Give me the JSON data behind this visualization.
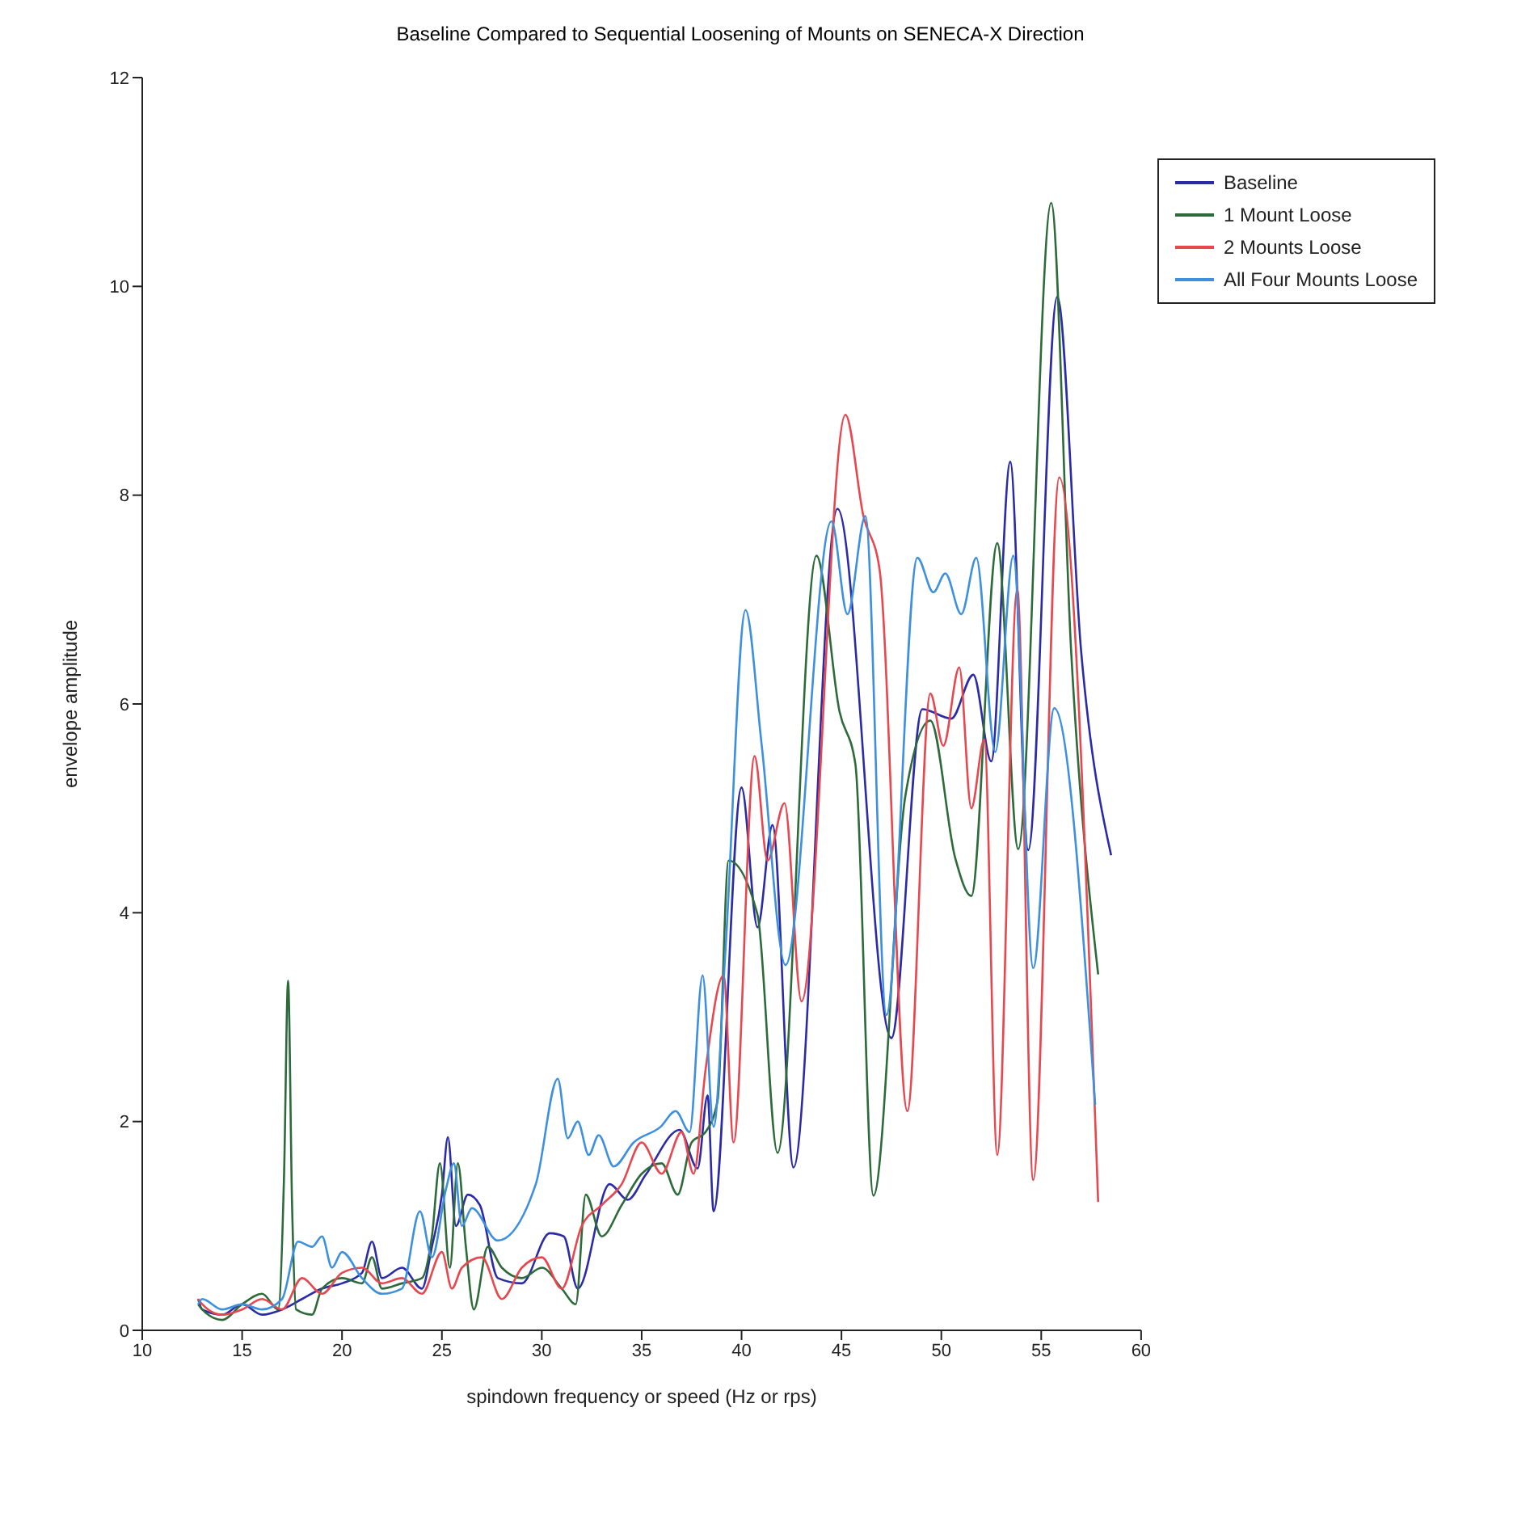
{
  "chart_data": {
    "type": "line",
    "title": "Baseline Compared to Sequential Loosening of Mounts on SENECA-X Direction",
    "xlabel": "spindown frequency or speed (Hz or rps)",
    "ylabel": "envelope amplitude",
    "xlim": [
      10,
      60
    ],
    "xticks": [
      10,
      15,
      20,
      25,
      30,
      35,
      40,
      45,
      50,
      55,
      60
    ],
    "ylim": [
      0,
      12
    ],
    "yticks": [
      0,
      2,
      4,
      6,
      8,
      10,
      12
    ],
    "grid": false,
    "legend": "top right",
    "marker": "none",
    "line_style": "solid",
    "series": [
      {
        "name": "Baseline",
        "color": "#2b2ba8",
        "x": [
          12.8,
          13,
          14,
          15,
          16,
          17,
          18,
          19,
          20,
          21,
          21.5,
          22,
          23,
          24,
          24.5,
          25,
          25.3,
          25.7,
          26.3,
          26.9,
          27.8,
          29,
          30.4,
          31.1,
          31.8,
          33.4,
          34.3,
          35.2,
          36.9,
          37.8,
          38.3,
          38.6,
          40,
          40.8,
          41.55,
          42.6,
          44.8,
          47.5,
          49.05,
          50.5,
          51.6,
          52.5,
          53.45,
          54.35,
          55.8,
          57,
          58.5
        ],
        "values": [
          0.3,
          0.2,
          0.15,
          0.25,
          0.15,
          0.2,
          0.3,
          0.4,
          0.45,
          0.55,
          0.85,
          0.5,
          0.6,
          0.4,
          0.8,
          1.3,
          1.85,
          1.0,
          1.3,
          1.2,
          0.5,
          0.45,
          0.93,
          0.9,
          0.4,
          1.4,
          1.25,
          1.49,
          1.92,
          1.55,
          2.25,
          1.14,
          5.2,
          3.86,
          4.84,
          1.56,
          7.87,
          2.8,
          5.95,
          5.86,
          6.28,
          5.45,
          8.32,
          4.6,
          9.9,
          6.5,
          4.55
        ]
      },
      {
        "name": "1 Mount Loose",
        "color": "#2e6b3a",
        "x": [
          12.8,
          13,
          14,
          15,
          16,
          16.8,
          17.1,
          17.3,
          17.5,
          17.7,
          18.5,
          19,
          20,
          21,
          21.5,
          22,
          23,
          24,
          24.5,
          24.9,
          25.4,
          25.8,
          26.2,
          26.6,
          27.3,
          28,
          29,
          30,
          31,
          31.7,
          32.2,
          33,
          34,
          35,
          36,
          36.8,
          37.5,
          38.2,
          38.8,
          39.35,
          40.8,
          41.8,
          43.75,
          44.9,
          45.7,
          46.6,
          48.2,
          49.45,
          50.7,
          51.5,
          52.8,
          53.85,
          55.5,
          56.5,
          57.85
        ],
        "values": [
          0.25,
          0.2,
          0.1,
          0.25,
          0.35,
          0.2,
          1.5,
          3.35,
          1.2,
          0.2,
          0.15,
          0.4,
          0.5,
          0.45,
          0.7,
          0.4,
          0.45,
          0.5,
          0.9,
          1.6,
          0.6,
          1.6,
          0.8,
          0.2,
          0.8,
          0.6,
          0.5,
          0.6,
          0.4,
          0.25,
          1.3,
          0.9,
          1.2,
          1.5,
          1.6,
          1.3,
          1.8,
          1.9,
          2.2,
          4.5,
          3.98,
          1.7,
          7.42,
          5.93,
          5.42,
          1.29,
          5.12,
          5.84,
          4.52,
          4.16,
          7.54,
          4.61,
          10.8,
          6.5,
          3.41
        ]
      },
      {
        "name": "2 Mounts Loose",
        "color": "#e8474f",
        "x": [
          12.8,
          13,
          14,
          15,
          16,
          17,
          18,
          19,
          20,
          21,
          22,
          23,
          24,
          25,
          25.5,
          26,
          27,
          28,
          29,
          30,
          31,
          32,
          33,
          34,
          35,
          36,
          37,
          37.6,
          38.2,
          39.1,
          39.6,
          40.65,
          41.3,
          42.15,
          43,
          45.2,
          46.1,
          46.9,
          48.3,
          49.45,
          50.1,
          50.9,
          51.5,
          52.15,
          52.8,
          53.8,
          54.6,
          55.9,
          57.85
        ],
        "values": [
          0.3,
          0.25,
          0.15,
          0.2,
          0.3,
          0.2,
          0.5,
          0.35,
          0.55,
          0.6,
          0.45,
          0.5,
          0.35,
          0.75,
          0.4,
          0.6,
          0.7,
          0.3,
          0.6,
          0.7,
          0.4,
          1.0,
          1.2,
          1.4,
          1.8,
          1.5,
          1.9,
          1.5,
          2.5,
          3.4,
          1.8,
          5.5,
          4.5,
          5.05,
          3.15,
          8.77,
          7.8,
          7.3,
          2.1,
          6.1,
          5.6,
          6.35,
          5.0,
          5.66,
          1.68,
          7.1,
          1.44,
          8.17,
          1.23
        ]
      },
      {
        "name": "All Four Mounts Loose",
        "color": "#3d8fe0",
        "x": [
          12.8,
          13,
          14,
          15,
          16,
          17,
          17.8,
          18.5,
          19,
          19.5,
          20,
          21,
          22,
          23,
          23.9,
          24.5,
          25.2,
          25.6,
          26,
          26.5,
          27.8,
          29.7,
          30.8,
          31.3,
          31.8,
          32.35,
          32.85,
          33.6,
          34.6,
          35.95,
          36.7,
          37.4,
          38.05,
          38.6,
          39.2,
          40.2,
          41.0,
          42.2,
          44.5,
          45.3,
          46.2,
          47.25,
          48.8,
          49.6,
          50.2,
          51.0,
          51.75,
          52.7,
          53.6,
          54.6,
          55.65,
          57.7
        ],
        "values": [
          0.25,
          0.3,
          0.2,
          0.25,
          0.2,
          0.3,
          0.85,
          0.8,
          0.9,
          0.6,
          0.75,
          0.5,
          0.35,
          0.4,
          1.14,
          0.7,
          1.35,
          1.6,
          1.0,
          1.17,
          0.86,
          1.4,
          2.41,
          1.84,
          2.0,
          1.68,
          1.87,
          1.57,
          1.8,
          1.95,
          2.1,
          1.9,
          3.4,
          1.95,
          3.66,
          6.9,
          5.62,
          3.5,
          7.75,
          6.86,
          7.8,
          3.02,
          7.4,
          7.07,
          7.25,
          6.86,
          7.4,
          5.54,
          7.42,
          3.47,
          5.96,
          2.16
        ]
      }
    ]
  }
}
